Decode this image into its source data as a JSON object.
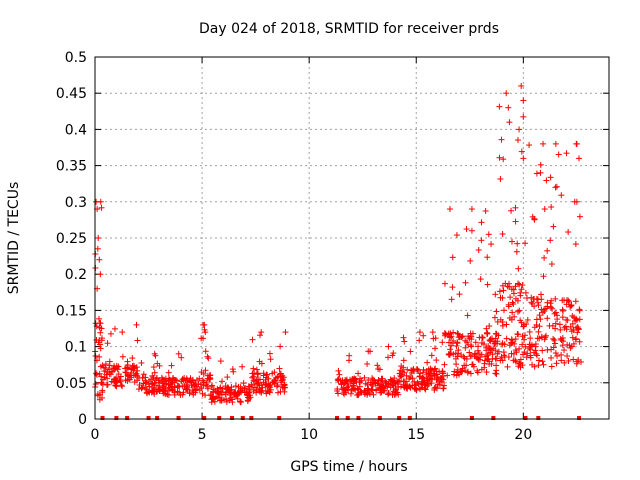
{
  "chart_data": {
    "type": "scatter",
    "title": "Day 024 of 2018, SRMTID for receiver prds",
    "xlabel": "GPS time / hours",
    "ylabel": "SRMTID / TECUs",
    "xlim": [
      0,
      24
    ],
    "ylim": [
      0,
      0.5
    ],
    "x_ticks": [
      "0",
      "5",
      "10",
      "15",
      "20"
    ],
    "x_tick_values": [
      0,
      5,
      10,
      15,
      20
    ],
    "y_ticks": [
      "0",
      "0.05",
      "0.1",
      "0.15",
      "0.2",
      "0.25",
      "0.3",
      "0.35",
      "0.4",
      "0.45",
      "0.5"
    ],
    "y_tick_values": [
      0,
      0.05,
      0.1,
      0.15,
      0.2,
      0.25,
      0.3,
      0.35,
      0.4,
      0.45,
      0.5
    ],
    "grid": true,
    "marker": "+",
    "series_color": "#ff0000",
    "activity_segments": [
      {
        "start": 0.0,
        "end": 0.35,
        "base": 0.08,
        "spread": 0.18,
        "n": 40,
        "peak": 0.3
      },
      {
        "start": 0.35,
        "end": 2.0,
        "base": 0.06,
        "spread": 0.05,
        "n": 90,
        "peak": 0.13
      },
      {
        "start": 2.0,
        "end": 4.9,
        "base": 0.045,
        "spread": 0.04,
        "n": 160,
        "peak": 0.09
      },
      {
        "start": 4.9,
        "end": 5.4,
        "base": 0.05,
        "spread": 0.06,
        "n": 30,
        "peak": 0.13
      },
      {
        "start": 5.4,
        "end": 7.3,
        "base": 0.035,
        "spread": 0.04,
        "n": 110,
        "peak": 0.08
      },
      {
        "start": 7.3,
        "end": 8.9,
        "base": 0.05,
        "spread": 0.05,
        "n": 100,
        "peak": 0.12
      },
      {
        "start": 11.3,
        "end": 14.2,
        "base": 0.045,
        "spread": 0.04,
        "n": 170,
        "peak": 0.1
      },
      {
        "start": 14.2,
        "end": 16.3,
        "base": 0.055,
        "spread": 0.05,
        "n": 140,
        "peak": 0.12
      },
      {
        "start": 16.3,
        "end": 18.8,
        "base": 0.09,
        "spread": 0.1,
        "n": 170,
        "peak": 0.29
      },
      {
        "start": 18.8,
        "end": 20.2,
        "base": 0.13,
        "spread": 0.2,
        "n": 110,
        "peak": 0.46
      },
      {
        "start": 20.2,
        "end": 22.7,
        "base": 0.12,
        "spread": 0.16,
        "n": 170,
        "peak": 0.38
      }
    ],
    "highlight_points": [
      {
        "x": 0.05,
        "y": 0.3
      },
      {
        "x": 0.1,
        "y": 0.29
      },
      {
        "x": 0.15,
        "y": 0.25
      },
      {
        "x": 0.2,
        "y": 0.22
      },
      {
        "x": 0.25,
        "y": 0.2
      },
      {
        "x": 0.1,
        "y": 0.18
      },
      {
        "x": 5.05,
        "y": 0.13
      },
      {
        "x": 5.15,
        "y": 0.12
      },
      {
        "x": 19.2,
        "y": 0.45
      },
      {
        "x": 19.3,
        "y": 0.43
      },
      {
        "x": 19.35,
        "y": 0.41
      },
      {
        "x": 19.9,
        "y": 0.46
      },
      {
        "x": 20.0,
        "y": 0.44
      },
      {
        "x": 19.8,
        "y": 0.4
      },
      {
        "x": 20.0,
        "y": 0.36
      },
      {
        "x": 17.6,
        "y": 0.29
      },
      {
        "x": 17.6,
        "y": 0.26
      },
      {
        "x": 22.5,
        "y": 0.38
      },
      {
        "x": 22.6,
        "y": 0.36
      },
      {
        "x": 22.4,
        "y": 0.3
      },
      {
        "x": 21.5,
        "y": 0.32
      },
      {
        "x": 20.8,
        "y": 0.34
      },
      {
        "x": 21.0,
        "y": 0.29
      },
      {
        "x": 22.5,
        "y": 0.3
      }
    ],
    "data_gaps_at_zero": [
      0.35,
      1.0,
      1.5,
      2.5,
      2.9,
      3.9,
      5.1,
      5.8,
      6.4,
      6.9,
      7.3,
      8.6,
      11.3,
      11.8,
      12.3,
      13.3,
      14.2,
      14.7,
      17.6,
      18.6,
      20.1,
      20.7,
      22.6
    ]
  }
}
